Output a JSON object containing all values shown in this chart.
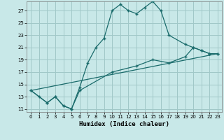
{
  "xlabel": "Humidex (Indice chaleur)",
  "xlim": [
    -0.5,
    23.5
  ],
  "ylim": [
    10.5,
    28.5
  ],
  "yticks": [
    11,
    13,
    15,
    17,
    19,
    21,
    23,
    25,
    27
  ],
  "xticks": [
    0,
    1,
    2,
    3,
    4,
    5,
    6,
    7,
    8,
    9,
    10,
    11,
    12,
    13,
    14,
    15,
    16,
    17,
    18,
    19,
    20,
    21,
    22,
    23
  ],
  "bg_color": "#c8e8e8",
  "grid_color": "#a0c8c8",
  "line_color": "#1a6b6b",
  "curve1_x": [
    0,
    1,
    2,
    3,
    4,
    5,
    6,
    7,
    8,
    9,
    10,
    11,
    12,
    13,
    14,
    15,
    16,
    17,
    19,
    20,
    21,
    22,
    23
  ],
  "curve1_y": [
    14,
    13,
    12,
    13,
    11.5,
    11,
    14.5,
    18.5,
    21,
    22.5,
    27,
    28,
    27,
    26.5,
    27.5,
    28.5,
    27,
    23,
    21.5,
    21,
    20.5,
    20,
    20
  ],
  "curve2_x": [
    0,
    2,
    3,
    4,
    5,
    6,
    10,
    13,
    15,
    17,
    19,
    20,
    21,
    22,
    23
  ],
  "curve2_y": [
    14,
    12,
    13,
    11.5,
    11,
    14,
    17,
    18,
    19,
    18.5,
    19.5,
    21,
    20.5,
    20,
    20
  ],
  "curve3_x": [
    0,
    23
  ],
  "curve3_y": [
    14,
    20
  ]
}
